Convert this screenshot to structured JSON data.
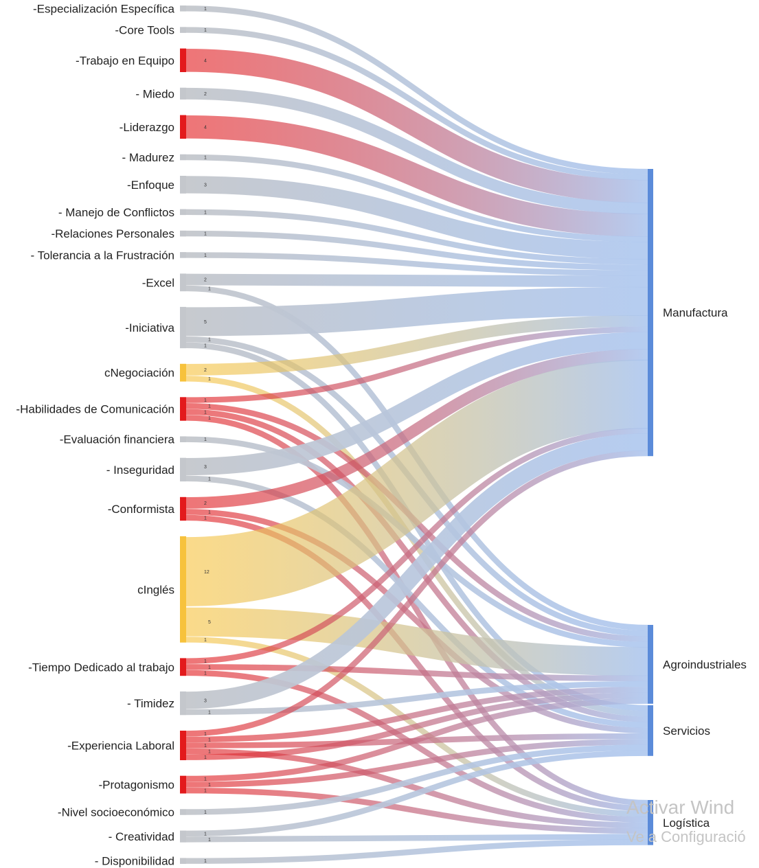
{
  "chart_data": {
    "type": "sankey",
    "nodes_left": [
      {
        "label": "-Especialización Específica",
        "color": "#c4c7cc",
        "links": [
          {
            "to": "Manufactura",
            "value": 1
          }
        ]
      },
      {
        "label": "-Core Tools",
        "color": "#c4c7cc",
        "links": [
          {
            "to": "Manufactura",
            "value": 1
          }
        ]
      },
      {
        "label": "-Trabajo en Equipo",
        "color": "#e31a1c",
        "links": [
          {
            "to": "Manufactura",
            "value": 4
          }
        ]
      },
      {
        "label": "- Miedo",
        "color": "#c4c7cc",
        "links": [
          {
            "to": "Manufactura",
            "value": 2
          }
        ]
      },
      {
        "label": "-Liderazgo",
        "color": "#e31a1c",
        "links": [
          {
            "to": "Manufactura",
            "value": 4
          }
        ]
      },
      {
        "label": "- Madurez",
        "color": "#c4c7cc",
        "links": [
          {
            "to": "Manufactura",
            "value": 1
          }
        ]
      },
      {
        "label": "-Enfoque",
        "color": "#c4c7cc",
        "links": [
          {
            "to": "Manufactura",
            "value": 3
          }
        ]
      },
      {
        "label": "- Manejo de Conflictos",
        "color": "#c4c7cc",
        "links": [
          {
            "to": "Manufactura",
            "value": 1
          }
        ]
      },
      {
        "label": "-Relaciones Personales",
        "color": "#c4c7cc",
        "links": [
          {
            "to": "Manufactura",
            "value": 1
          }
        ]
      },
      {
        "label": "- Tolerancia a la Frustración",
        "color": "#c4c7cc",
        "links": [
          {
            "to": "Manufactura",
            "value": 1
          }
        ]
      },
      {
        "label": "-Excel",
        "color": "#c4c7cc",
        "links": [
          {
            "to": "Manufactura",
            "value": 2
          },
          {
            "to": "Agroindustriales",
            "value": 1
          }
        ]
      },
      {
        "label": "-Iniciativa",
        "color": "#c4c7cc",
        "links": [
          {
            "to": "Manufactura",
            "value": 5
          },
          {
            "to": "Agroindustriales",
            "value": 1
          },
          {
            "to": "Servicios",
            "value": 1
          }
        ]
      },
      {
        "label": "cNegociación",
        "color": "#f7c23c",
        "links": [
          {
            "to": "Manufactura",
            "value": 2
          },
          {
            "to": "Servicios",
            "value": 1
          }
        ]
      },
      {
        "label": "-Habilidades de Comunicación",
        "color": "#e31a1c",
        "links": [
          {
            "to": "Manufactura",
            "value": 1
          },
          {
            "to": "Agroindustriales",
            "value": 1
          },
          {
            "to": "Servicios",
            "value": 1
          },
          {
            "to": "Logística",
            "value": 1
          }
        ]
      },
      {
        "label": "-Evaluación financiera",
        "color": "#c4c7cc",
        "links": [
          {
            "to": "Agroindustriales",
            "value": 1
          }
        ]
      },
      {
        "label": "- Inseguridad",
        "color": "#c4c7cc",
        "links": [
          {
            "to": "Manufactura",
            "value": 3
          },
          {
            "to": "Servicios",
            "value": 1
          }
        ]
      },
      {
        "label": "-Conformista",
        "color": "#e31a1c",
        "links": [
          {
            "to": "Manufactura",
            "value": 2
          },
          {
            "to": "Servicios",
            "value": 1
          },
          {
            "to": "Logística",
            "value": 1
          }
        ]
      },
      {
        "label": "cInglés",
        "color": "#f7c23c",
        "links": [
          {
            "to": "Manufactura",
            "value": 12
          },
          {
            "to": "Agroindustriales",
            "value": 5
          },
          {
            "to": "Logística",
            "value": 1
          }
        ]
      },
      {
        "label": "-Tiempo Dedicado al trabajo",
        "color": "#e31a1c",
        "links": [
          {
            "to": "Manufactura",
            "value": 1
          },
          {
            "to": "Agroindustriales",
            "value": 1
          },
          {
            "to": "Logística",
            "value": 1
          }
        ]
      },
      {
        "label": "- Timidez",
        "color": "#c4c7cc",
        "links": [
          {
            "to": "Manufactura",
            "value": 3
          },
          {
            "to": "Agroindustriales",
            "value": 1
          }
        ]
      },
      {
        "label": "-Experiencia Laboral",
        "color": "#e31a1c",
        "links": [
          {
            "to": "Manufactura",
            "value": 1
          },
          {
            "to": "Agroindustriales",
            "value": 1
          },
          {
            "to": "Servicios",
            "value": 1
          },
          {
            "to": "Logística",
            "value": 1
          },
          {
            "to": "Agroindustriales",
            "value": 1
          }
        ]
      },
      {
        "label": "-Protagonismo",
        "color": "#e31a1c",
        "links": [
          {
            "to": "Agroindustriales",
            "value": 1
          },
          {
            "to": "Servicios",
            "value": 1
          },
          {
            "to": "Logística",
            "value": 1
          }
        ]
      },
      {
        "label": "-Nivel socioeconómico",
        "color": "#c4c7cc",
        "links": [
          {
            "to": "Servicios",
            "value": 1
          }
        ]
      },
      {
        "label": "- Creatividad",
        "color": "#c4c7cc",
        "links": [
          {
            "to": "Servicios",
            "value": 1
          },
          {
            "to": "Logística",
            "value": 1
          }
        ]
      },
      {
        "label": "- Disponibilidad",
        "color": "#c4c7cc",
        "links": [
          {
            "to": "Logística",
            "value": 1
          }
        ]
      }
    ],
    "nodes_right": [
      {
        "label": "Manufactura",
        "color": "#5b8bd9"
      },
      {
        "label": "Agroindustriales",
        "color": "#5b8bd9"
      },
      {
        "label": "Servicios",
        "color": "#5b8bd9"
      },
      {
        "label": "Logística",
        "color": "#5b8bd9"
      }
    ],
    "link_end_color": "#a9c4ee"
  },
  "watermark": {
    "line1": "Activar Wind",
    "line2": "Ve a Configuració"
  }
}
